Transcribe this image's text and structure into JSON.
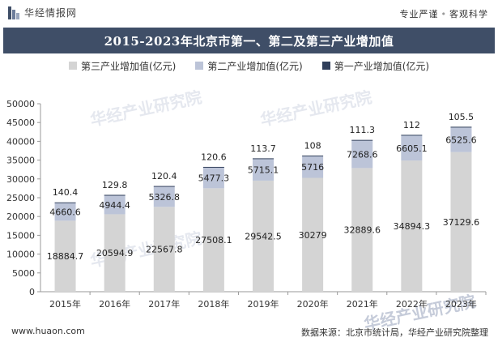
{
  "header": {
    "brand": "华经情报网",
    "tagline_left": "专业严谨",
    "tagline_right": "客观科学",
    "title": "2015-2023年北京市第一、第二及第三产业增加值"
  },
  "colors": {
    "tertiary": "#d4d4d4",
    "secondary": "#bcc4d8",
    "primary": "#2f3e5a",
    "titlebar": "#3f4e67",
    "logo": "#3f4e67"
  },
  "footer": {
    "url": "www.huaon.com",
    "source": "数据来源：北京市统计局，华经产业研究院整理"
  },
  "watermark": {
    "text": "华经产业研究院"
  },
  "chart_data": {
    "type": "bar",
    "stacked": true,
    "title": "2015-2023年北京市第一、第二及第三产业增加值",
    "categories": [
      "2015年",
      "2016年",
      "2017年",
      "2018年",
      "2019年",
      "2020年",
      "2021年",
      "2022年",
      "2023年"
    ],
    "series": [
      {
        "name": "第三产业增加值(亿元)",
        "values": [
          18884.7,
          20594.9,
          22567.8,
          27508.1,
          29542.5,
          30279,
          32889.6,
          34894.3,
          37129.6
        ]
      },
      {
        "name": "第二产业增加值(亿元)",
        "values": [
          4660.6,
          4944.4,
          5326.8,
          5477.3,
          5715.1,
          5716,
          7268.6,
          6605.1,
          6525.6
        ]
      },
      {
        "name": "第一产业增加值(亿元)",
        "values": [
          140.4,
          129.8,
          120.4,
          120.6,
          113.7,
          108,
          111.3,
          112,
          105.5
        ]
      }
    ],
    "data_labels": {
      "tertiary": [
        "18884.7",
        "20594.9",
        "22567.8",
        "27508.1",
        "29542.5",
        "30279",
        "32889.6",
        "34894.3",
        "37129.6"
      ],
      "secondary": [
        "4660.6",
        "4944.4",
        "5326.8",
        "5477.3",
        "5715.1",
        "5716",
        "7268.6",
        "6605.1",
        "6525.6"
      ],
      "primary": [
        "140.4",
        "129.8",
        "120.4",
        "120.6",
        "113.7",
        "108",
        "111.3",
        "112",
        "105.5"
      ]
    },
    "yticks": [
      "0",
      "5000",
      "10000",
      "15000",
      "20000",
      "25000",
      "30000",
      "35000",
      "40000",
      "45000",
      "50000"
    ],
    "ylim": [
      0,
      50000
    ],
    "legend_position": "top-center"
  }
}
